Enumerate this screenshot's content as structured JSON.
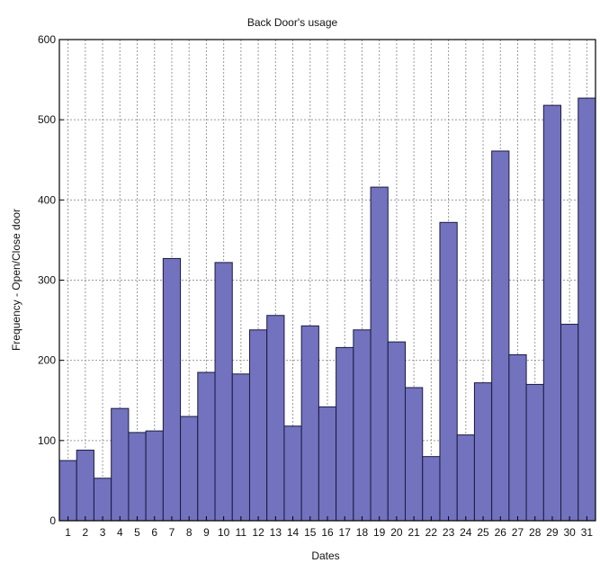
{
  "chart_data": {
    "type": "bar",
    "title": "Back Door's usage",
    "xlabel": "Dates",
    "ylabel": "Frequency - Open/Close door",
    "categories": [
      "1",
      "2",
      "3",
      "4",
      "5",
      "6",
      "7",
      "8",
      "9",
      "10",
      "11",
      "12",
      "13",
      "14",
      "15",
      "16",
      "17",
      "18",
      "19",
      "20",
      "21",
      "22",
      "23",
      "24",
      "25",
      "26",
      "27",
      "28",
      "29",
      "30",
      "31"
    ],
    "values": [
      75,
      88,
      53,
      140,
      110,
      112,
      327,
      130,
      185,
      322,
      183,
      238,
      256,
      118,
      243,
      142,
      216,
      238,
      416,
      223,
      166,
      80,
      372,
      107,
      172,
      461,
      207,
      170,
      518,
      245,
      527
    ],
    "ylim": [
      0,
      600
    ],
    "yticks": [
      0,
      100,
      200,
      300,
      400,
      500,
      600
    ],
    "grid": true,
    "legend": "none",
    "colors": {
      "bar_fill": "#7272be",
      "bar_stroke": "#1a1a40",
      "grid": "#9a9a9a"
    }
  }
}
